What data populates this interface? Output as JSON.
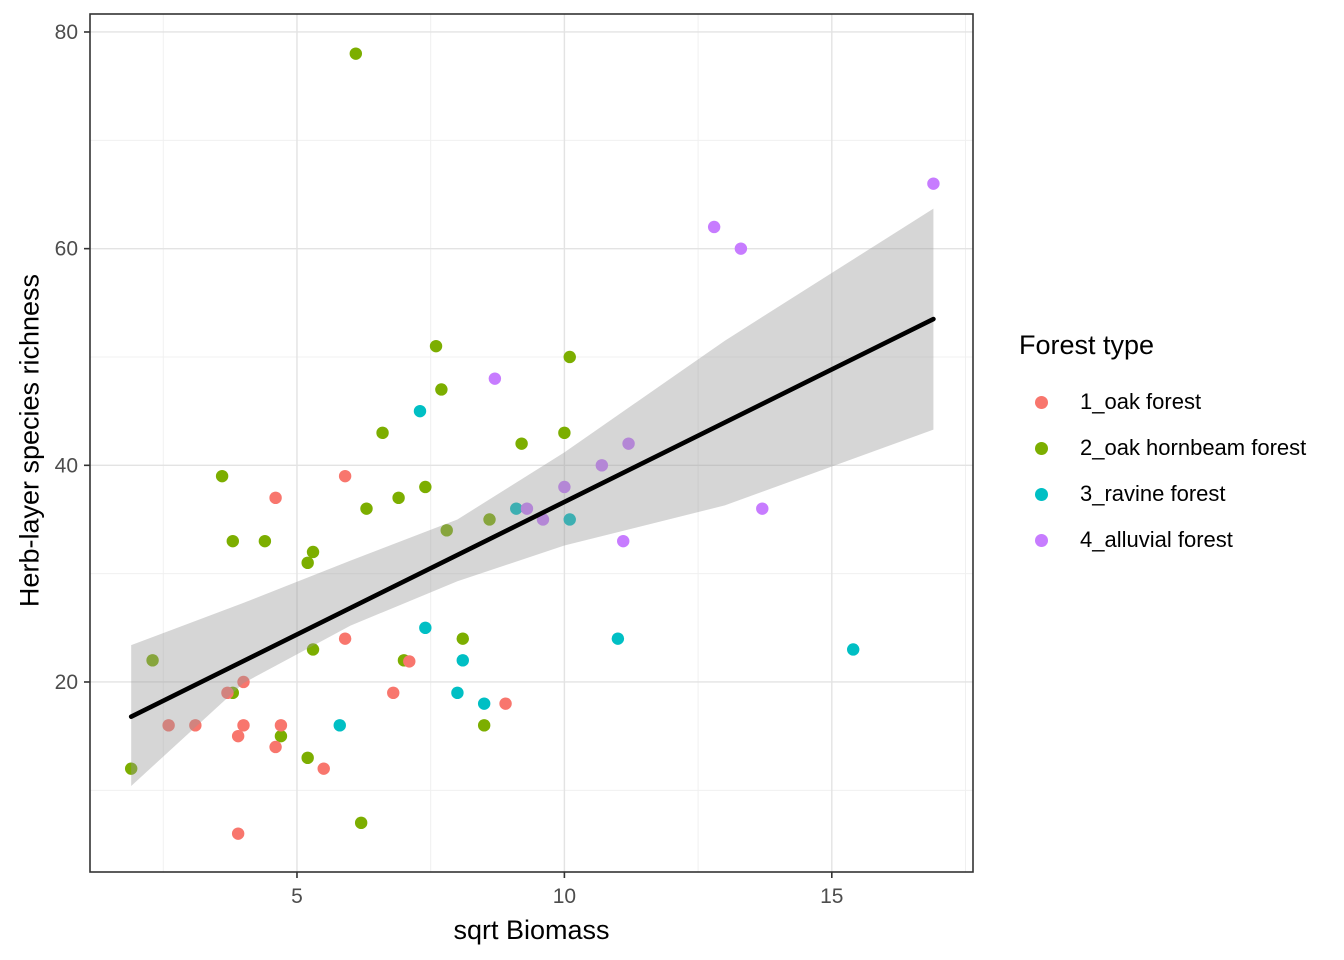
{
  "chart_data": {
    "type": "scatter",
    "title": "",
    "xlabel": "sqrt Biomass",
    "ylabel": "Herb-layer species richness",
    "xlim": [
      1.13,
      17.64
    ],
    "ylim": [
      2.46,
      81.66
    ],
    "x_ticks": [
      5,
      10,
      15
    ],
    "y_ticks": [
      20,
      40,
      60,
      80
    ],
    "x_minor_ticks": [
      2.5,
      7.5,
      12.5,
      17.5
    ],
    "y_minor_ticks": [
      10,
      30,
      50,
      70
    ],
    "grid": true,
    "legend_position": "right",
    "legend_title": "Forest type",
    "series": [
      {
        "name": "2_oak hornbeam forest",
        "color": "#7CAE00",
        "points": [
          [
            6.1,
            78
          ],
          [
            7.6,
            51
          ],
          [
            10.1,
            50
          ],
          [
            7.7,
            47
          ],
          [
            6.6,
            43
          ],
          [
            10.0,
            43
          ],
          [
            9.2,
            42
          ],
          [
            3.6,
            39
          ],
          [
            7.4,
            38
          ],
          [
            6.9,
            37
          ],
          [
            6.3,
            36
          ],
          [
            8.6,
            35
          ],
          [
            7.8,
            34
          ],
          [
            3.8,
            33
          ],
          [
            4.4,
            33
          ],
          [
            5.3,
            32
          ],
          [
            5.2,
            31
          ],
          [
            8.1,
            24
          ],
          [
            5.3,
            23
          ],
          [
            2.3,
            22
          ],
          [
            7.0,
            22
          ],
          [
            3.8,
            19
          ],
          [
            8.5,
            16
          ],
          [
            4.7,
            15
          ],
          [
            5.2,
            13
          ],
          [
            1.9,
            12
          ],
          [
            6.2,
            7
          ]
        ]
      },
      {
        "name": "1_oak forest",
        "color": "#F8766D",
        "points": [
          [
            4.6,
            37
          ],
          [
            5.9,
            39
          ],
          [
            5.9,
            24
          ],
          [
            6.8,
            19
          ],
          [
            8.9,
            18
          ],
          [
            7.1,
            21.9
          ],
          [
            4.0,
            20
          ],
          [
            3.7,
            19
          ],
          [
            2.6,
            16
          ],
          [
            3.1,
            16
          ],
          [
            4.0,
            16
          ],
          [
            3.9,
            15
          ],
          [
            4.7,
            16
          ],
          [
            4.6,
            14
          ],
          [
            5.5,
            12
          ],
          [
            3.9,
            6
          ]
        ]
      },
      {
        "name": "3_ravine forest",
        "color": "#00BFC4",
        "points": [
          [
            7.3,
            45
          ],
          [
            9.1,
            36
          ],
          [
            10.1,
            35
          ],
          [
            7.4,
            25
          ],
          [
            11.0,
            24
          ],
          [
            15.4,
            23
          ],
          [
            8.1,
            22
          ],
          [
            8.0,
            19
          ],
          [
            8.5,
            18
          ],
          [
            5.8,
            16
          ]
        ]
      },
      {
        "name": "4_alluvial forest",
        "color": "#C77CFF",
        "points": [
          [
            16.9,
            66
          ],
          [
            12.8,
            62
          ],
          [
            13.3,
            60
          ],
          [
            8.7,
            48
          ],
          [
            11.2,
            42
          ],
          [
            10.7,
            40
          ],
          [
            10.0,
            38
          ],
          [
            13.7,
            36
          ],
          [
            9.3,
            36
          ],
          [
            9.6,
            35
          ],
          [
            11.1,
            33
          ]
        ]
      }
    ],
    "legend_order": [
      1,
      0,
      2,
      3
    ],
    "smooth": {
      "type": "linear_regression",
      "line": [
        [
          1.9,
          16.8
        ],
        [
          16.9,
          53.5
        ]
      ],
      "line_color": "#000000",
      "ribbon_color": "#999999",
      "ribbon_alpha": 0.4,
      "ribbon_upper": [
        [
          1.9,
          23.4
        ],
        [
          4,
          27.3
        ],
        [
          6,
          31.2
        ],
        [
          8,
          35.0
        ],
        [
          10,
          41.2
        ],
        [
          13,
          51.5
        ],
        [
          16.9,
          63.7
        ]
      ],
      "ribbon_lower": [
        [
          1.9,
          10.4
        ],
        [
          4,
          19.9
        ],
        [
          6,
          25.2
        ],
        [
          8,
          29.3
        ],
        [
          10,
          32.6
        ],
        [
          13,
          36.3
        ],
        [
          16.9,
          43.3
        ]
      ]
    },
    "style": {
      "panel_background": "#FFFFFF",
      "panel_border": "#333333",
      "grid_major_color": "#E3E3E3",
      "grid_minor_color": "#F0F0F0",
      "tick_color": "#333333",
      "tick_label_color": "#4D4D4D",
      "point_radius": 6.2
    }
  }
}
